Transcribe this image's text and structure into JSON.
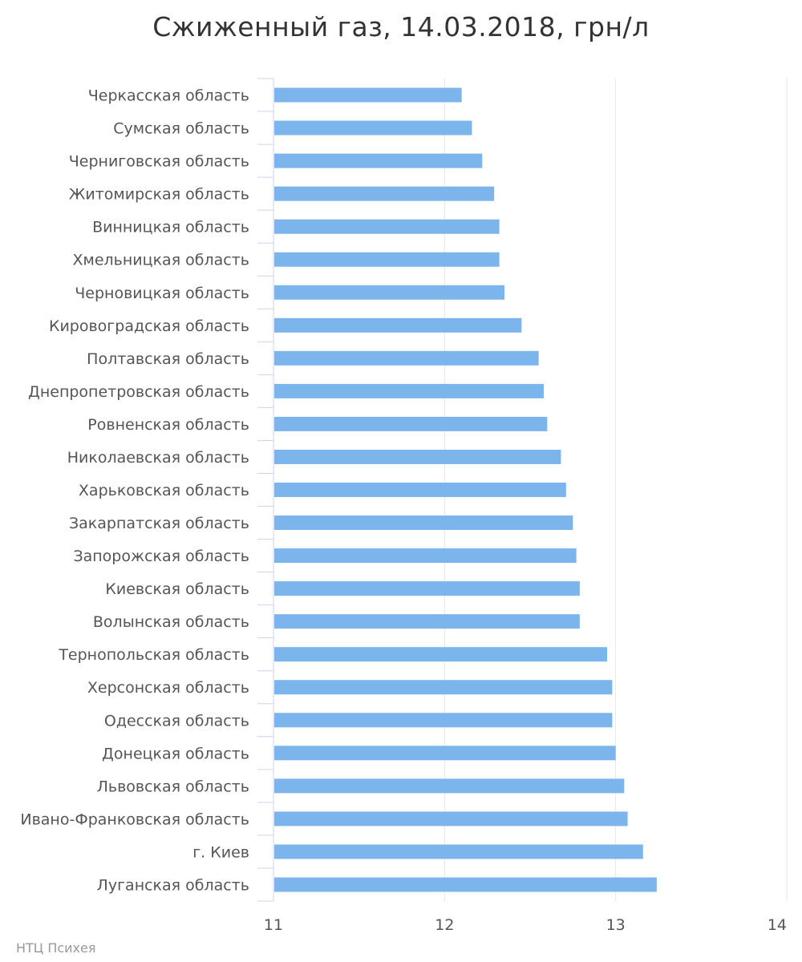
{
  "chart_data": {
    "type": "bar",
    "orientation": "horizontal",
    "title": "Сжиженный газ, 14.03.2018, грн/л",
    "categories": [
      "Черкасская область",
      "Сумская область",
      "Черниговская область",
      "Житомирская область",
      "Винницкая область",
      "Хмельницкая область",
      "Черновицкая область",
      "Кировоградская область",
      "Полтавская область",
      "Днепропетровская область",
      "Ровненская область",
      "Николаевская область",
      "Харьковская область",
      "Закарпатская область",
      "Запорожская область",
      "Киевская область",
      "Волынская область",
      "Тернопольская область",
      "Херсонская область",
      "Одесская область",
      "Донецкая область",
      "Львовская область",
      "Ивано-Франковская область",
      "г. Киев",
      "Луганская область"
    ],
    "values": [
      12.1,
      12.16,
      12.22,
      12.29,
      12.32,
      12.32,
      12.35,
      12.45,
      12.55,
      12.58,
      12.6,
      12.68,
      12.71,
      12.75,
      12.77,
      12.79,
      12.79,
      12.95,
      12.98,
      12.98,
      13.0,
      13.05,
      13.07,
      13.16,
      13.24
    ],
    "xlim": [
      11,
      14
    ],
    "xticks": [
      "11",
      "12",
      "13",
      "14"
    ],
    "grid": true,
    "legend": "none",
    "bar_color": "#7cb5ec",
    "grid_color": "#e6e6e6",
    "axis_color": "#ccd6eb"
  },
  "footer": {
    "source": "НТЦ Психея"
  }
}
